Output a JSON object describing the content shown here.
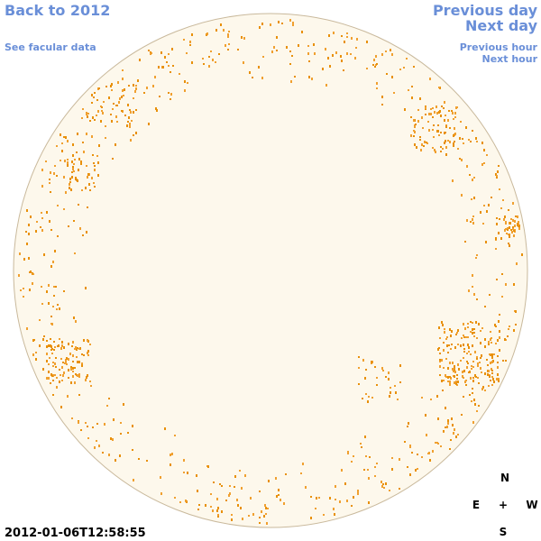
{
  "nav": {
    "back": "Back to 2012",
    "facular": "See facular data",
    "previous_day": "Previous day",
    "next_day": "Next day",
    "previous_hour": "Previous hour",
    "next_hour": "Next hour"
  },
  "compass": {
    "north": "N",
    "east": "E",
    "center": "+",
    "west": "W",
    "south": "S"
  },
  "timestamp": "2012-01-06T12:58:55"
}
